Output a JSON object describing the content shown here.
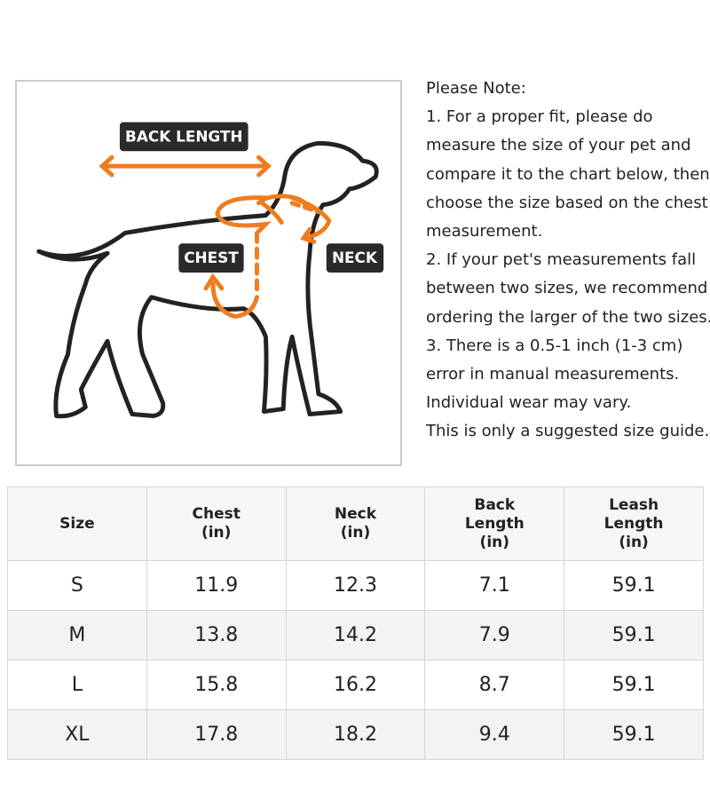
{
  "diagram": {
    "labels": [
      "BACK LENGTH",
      "CHEST",
      "NECK"
    ]
  },
  "note": {
    "lines": [
      "Please Note:",
      "1. For a proper fit, please do",
      "measure the size of your pet and",
      "compare it to the chart below, then",
      "choose the size based on the chest",
      "measurement.",
      "2. If your pet's measurements fall",
      "between two sizes, we recommend",
      "ordering the larger of the two sizes.",
      "3. There is a 0.5-1 inch (1-3 cm)",
      "error in manual measurements.",
      "Individual wear may vary.",
      "This is only a suggested size guide."
    ]
  },
  "table": {
    "header": [
      [
        "Size"
      ],
      [
        "Chest",
        "(in)"
      ],
      [
        "Neck",
        "(in)"
      ],
      [
        "Back",
        "Length",
        "(in)"
      ],
      [
        "Leash",
        "Length",
        "(in)"
      ]
    ],
    "rows": [
      [
        "S",
        "11.9",
        "12.3",
        "7.1",
        "59.1"
      ],
      [
        "M",
        "13.8",
        "14.2",
        "7.9",
        "59.1"
      ],
      [
        "L",
        "15.8",
        "16.2",
        "8.7",
        "59.1"
      ],
      [
        "XL",
        "17.8",
        "18.2",
        "9.4",
        "59.1"
      ]
    ]
  }
}
